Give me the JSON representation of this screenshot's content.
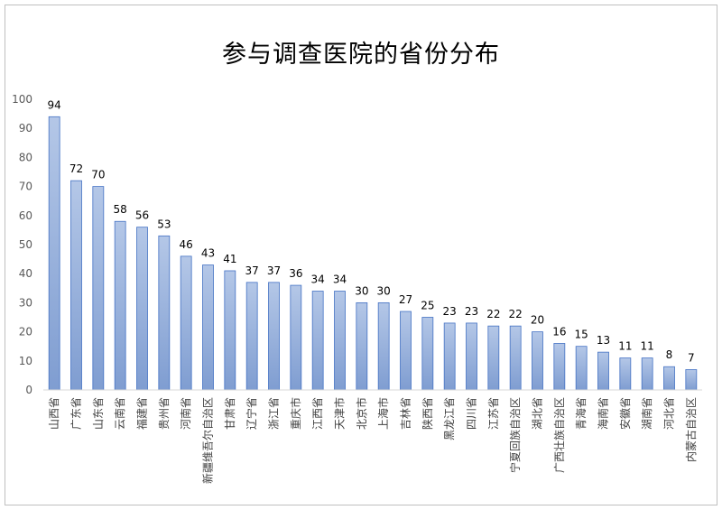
{
  "chart_data": {
    "type": "bar",
    "title": "参与调查医院的省份分布",
    "xlabel": "",
    "ylabel": "",
    "ylim": [
      0,
      100
    ],
    "yticks": [
      0,
      10,
      20,
      30,
      40,
      50,
      60,
      70,
      80,
      90,
      100
    ],
    "grid": false,
    "legend": "none",
    "categories": [
      "山西省",
      "广东省",
      "山东省",
      "云南省",
      "福建省",
      "贵州省",
      "河南省",
      "新疆维吾尔自治区",
      "甘肃省",
      "辽宁省",
      "浙江省",
      "重庆市",
      "江西省",
      "天津市",
      "北京市",
      "上海市",
      "吉林省",
      "陕西省",
      "黑龙江省",
      "四川省",
      "江苏省",
      "宁夏回族自治区",
      "湖北省",
      "广西壮族自治区",
      "青海省",
      "海南省",
      "安徽省",
      "湖南省",
      "河北省",
      "内蒙古自治区"
    ],
    "values": [
      94,
      72,
      70,
      58,
      56,
      53,
      46,
      43,
      41,
      37,
      37,
      36,
      34,
      34,
      30,
      30,
      27,
      25,
      23,
      23,
      22,
      22,
      20,
      16,
      15,
      13,
      11,
      11,
      8,
      7
    ],
    "colors": {
      "bar_top": "#b4c7e7",
      "bar_bottom": "#7f9dd1",
      "bar_stroke": "#4472c4",
      "axis": "#d9d9d9"
    }
  }
}
